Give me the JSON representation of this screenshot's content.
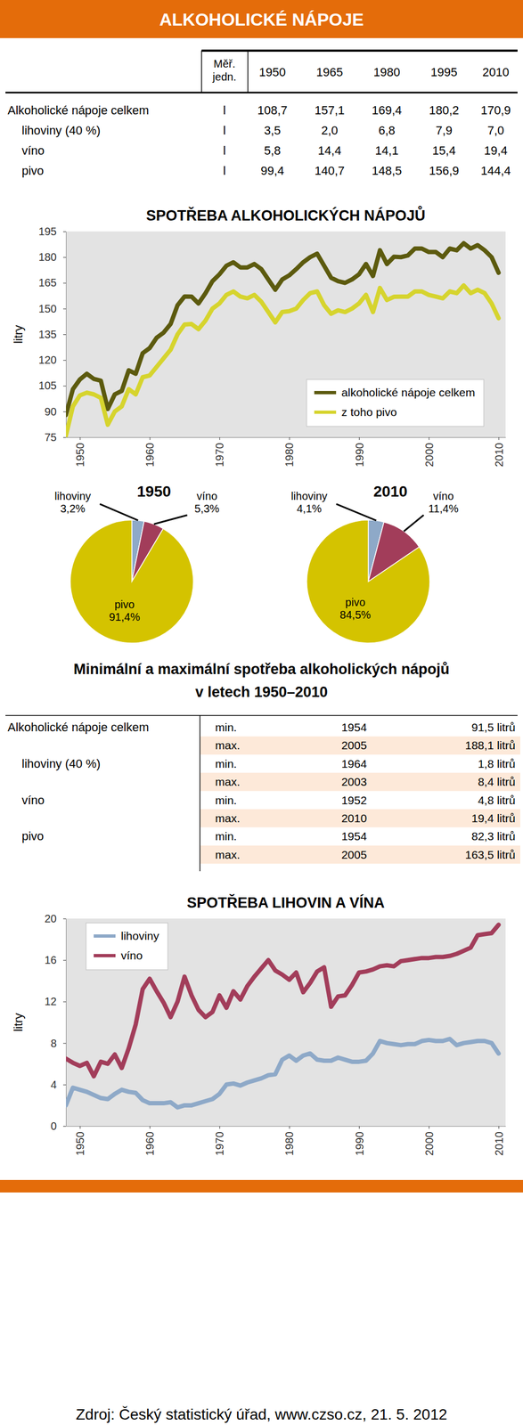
{
  "header": {
    "title": "ALKOHOLICKÉ NÁPOJE"
  },
  "table": {
    "columns": [
      "Měř. jedn.",
      "1950",
      "1965",
      "1980",
      "1995",
      "2010"
    ],
    "rows": [
      [
        "Alkoholické nápoje celkem",
        "l",
        "108,7",
        "157,1",
        "169,4",
        "180,2",
        "170,9"
      ],
      [
        "lihoviny (40 %)",
        "l",
        "3,5",
        "2,0",
        "6,8",
        "7,9",
        "7,0"
      ],
      [
        "víno",
        "l",
        "5,8",
        "14,4",
        "14,1",
        "15,4",
        "19,4"
      ],
      [
        "pivo",
        "l",
        "99,4",
        "140,7",
        "148,5",
        "156,9",
        "144,4"
      ]
    ]
  },
  "chart_data": [
    {
      "type": "line",
      "title": "SPOTŘEBA ALKOHOLICKÝCH NÁPOJŮ",
      "y_label": "litry",
      "x": [
        1948,
        1949,
        1950,
        1951,
        1952,
        1953,
        1954,
        1955,
        1956,
        1957,
        1958,
        1959,
        1960,
        1961,
        1962,
        1963,
        1964,
        1965,
        1966,
        1967,
        1968,
        1969,
        1970,
        1971,
        1972,
        1973,
        1974,
        1975,
        1976,
        1977,
        1978,
        1979,
        1980,
        1981,
        1982,
        1983,
        1984,
        1985,
        1986,
        1987,
        1988,
        1989,
        1990,
        1991,
        1992,
        1993,
        1994,
        1995,
        1996,
        1997,
        1998,
        1999,
        2000,
        2001,
        2002,
        2003,
        2004,
        2005,
        2006,
        2007,
        2008,
        2009,
        2010
      ],
      "xlim": [
        1948,
        2011
      ],
      "xticks": [
        1950,
        1960,
        1970,
        1980,
        1990,
        2000,
        2010
      ],
      "ylim": [
        75,
        195
      ],
      "yticks": [
        75,
        90,
        105,
        120,
        135,
        150,
        165,
        180,
        195
      ],
      "grid": false,
      "legend": "lower right",
      "series": [
        {
          "name": "alkoholické nápoje celkem",
          "color": "#5c5a0e",
          "values": [
            88,
            103,
            108.7,
            112,
            109,
            108,
            91.5,
            100,
            102,
            114,
            112,
            124,
            127,
            133,
            136,
            141,
            152,
            157.1,
            157,
            153,
            159,
            166,
            170,
            175,
            177,
            174,
            174,
            176,
            173,
            167,
            161,
            167,
            169.4,
            173,
            177,
            180,
            182,
            175,
            168,
            166,
            165,
            167,
            170,
            176,
            169,
            184,
            176,
            180.2,
            180,
            181,
            185,
            185,
            183,
            183,
            180,
            185,
            184,
            188.1,
            185,
            187,
            184,
            180,
            170.9
          ]
        },
        {
          "name": "z toho pivo",
          "color": "#d6d42e",
          "values": [
            76,
            93,
            99.4,
            101,
            100,
            98,
            82.3,
            90,
            93,
            103,
            100,
            110,
            111,
            116,
            121,
            126,
            135,
            140.7,
            141,
            138,
            143,
            150,
            153,
            158,
            160,
            157,
            156,
            158,
            154,
            148,
            142,
            148,
            148.5,
            150,
            155,
            159,
            160,
            152,
            147,
            149,
            148,
            150,
            153,
            158,
            148,
            162,
            155,
            156.9,
            157,
            157,
            160,
            160,
            158,
            157,
            156,
            160,
            159,
            163.5,
            159,
            161,
            159,
            153,
            144.4
          ]
        }
      ]
    },
    {
      "type": "pie",
      "title": "1950",
      "categories": [
        "lihoviny",
        "víno",
        "pivo"
      ],
      "values": [
        3.2,
        5.3,
        91.4
      ],
      "value_labels": [
        "3,2%",
        "5,3%",
        "91,4%"
      ],
      "colors": [
        "#8ea9c8",
        "#a23d5a",
        "#d4c300"
      ],
      "data_labels": true
    },
    {
      "type": "pie",
      "title": "2010",
      "categories": [
        "lihoviny",
        "víno",
        "pivo"
      ],
      "values": [
        4.1,
        11.4,
        84.5
      ],
      "value_labels": [
        "4,1%",
        "11,4%",
        "84,5%"
      ],
      "colors": [
        "#8ea9c8",
        "#a23d5a",
        "#d4c300"
      ],
      "data_labels": true
    },
    {
      "type": "line",
      "title": "SPOTŘEBA LIHOVIN A VÍNA",
      "y_label": "litry",
      "x": [
        1948,
        1949,
        1950,
        1951,
        1952,
        1953,
        1954,
        1955,
        1956,
        1957,
        1958,
        1959,
        1960,
        1961,
        1962,
        1963,
        1964,
        1965,
        1966,
        1967,
        1968,
        1969,
        1970,
        1971,
        1972,
        1973,
        1974,
        1975,
        1976,
        1977,
        1978,
        1979,
        1980,
        1981,
        1982,
        1983,
        1984,
        1985,
        1986,
        1987,
        1988,
        1989,
        1990,
        1991,
        1992,
        1993,
        1994,
        1995,
        1996,
        1997,
        1998,
        1999,
        2000,
        2001,
        2002,
        2003,
        2004,
        2005,
        2006,
        2007,
        2008,
        2009,
        2010
      ],
      "xlim": [
        1948,
        2011
      ],
      "xticks": [
        1950,
        1960,
        1970,
        1980,
        1990,
        2000,
        2010
      ],
      "ylim": [
        0,
        20
      ],
      "yticks": [
        0,
        4,
        8,
        12,
        16,
        20
      ],
      "grid": false,
      "legend": "upper left",
      "series": [
        {
          "name": "lihoviny",
          "color": "#8ea9c8",
          "values": [
            2.0,
            3.7,
            3.5,
            3.3,
            3.0,
            2.7,
            2.6,
            3.1,
            3.5,
            3.3,
            3.2,
            2.5,
            2.2,
            2.2,
            2.2,
            2.3,
            1.8,
            2.0,
            2.0,
            2.2,
            2.4,
            2.6,
            3.1,
            4.0,
            4.1,
            3.9,
            4.2,
            4.4,
            4.6,
            4.9,
            5.0,
            6.4,
            6.8,
            6.3,
            6.8,
            7.0,
            6.4,
            6.3,
            6.3,
            6.6,
            6.4,
            6.2,
            6.2,
            6.3,
            7.0,
            8.2,
            8.0,
            7.9,
            7.8,
            7.9,
            7.9,
            8.2,
            8.3,
            8.2,
            8.2,
            8.4,
            7.8,
            8.0,
            8.1,
            8.2,
            8.2,
            8.0,
            7.0
          ]
        },
        {
          "name": "víno",
          "color": "#a23d5a",
          "values": [
            6.5,
            6.1,
            5.8,
            6.1,
            4.8,
            6.2,
            6.0,
            6.9,
            5.6,
            7.5,
            9.8,
            13.2,
            14.2,
            13.0,
            11.9,
            10.5,
            12.0,
            14.4,
            12.6,
            11.2,
            10.5,
            11.0,
            12.6,
            11.4,
            13.0,
            12.2,
            13.5,
            14.4,
            15.2,
            16.0,
            15.0,
            14.6,
            14.1,
            14.8,
            12.9,
            13.8,
            14.9,
            15.3,
            11.5,
            12.5,
            12.6,
            13.6,
            14.8,
            14.9,
            15.1,
            15.4,
            15.5,
            15.4,
            15.9,
            16.0,
            16.1,
            16.2,
            16.2,
            16.3,
            16.3,
            16.4,
            16.6,
            16.9,
            17.2,
            18.4,
            18.5,
            18.6,
            19.4
          ]
        }
      ]
    }
  ],
  "minmax": {
    "title": [
      "Minimální a maximální spotřeba alkoholických nápojů",
      "v letech 1950–2010"
    ],
    "rows": [
      {
        "label": "Alkoholické nápoje celkem",
        "cells": [
          [
            "min.",
            "1954",
            "91,5 litrů"
          ],
          [
            "max.",
            "2005",
            "188,1 litrů"
          ]
        ]
      },
      {
        "label": "lihoviny (40 %)",
        "cells": [
          [
            "min.",
            "1964",
            "1,8 litrů"
          ],
          [
            "max.",
            "2003",
            "8,4 litrů"
          ]
        ]
      },
      {
        "label": "víno",
        "cells": [
          [
            "min.",
            "1952",
            "4,8 litrů"
          ],
          [
            "max.",
            "2010",
            "19,4 litrů"
          ]
        ]
      },
      {
        "label": "pivo",
        "cells": [
          [
            "min.",
            "1954",
            "82,3 litrů"
          ],
          [
            "max.",
            "2005",
            "163,5 litrů"
          ]
        ]
      }
    ]
  },
  "source": "Zdroj: Český statistický úřad, www.czso.cz, 21. 5. 2012"
}
